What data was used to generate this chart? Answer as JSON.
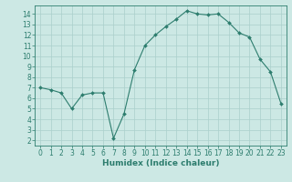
{
  "x": [
    0,
    1,
    2,
    3,
    4,
    5,
    6,
    7,
    8,
    9,
    10,
    11,
    12,
    13,
    14,
    15,
    16,
    17,
    18,
    19,
    20,
    21,
    22,
    23
  ],
  "y": [
    7.0,
    6.8,
    6.5,
    5.0,
    6.3,
    6.5,
    6.5,
    2.2,
    4.5,
    8.7,
    11.0,
    12.0,
    12.8,
    13.5,
    14.3,
    14.0,
    13.9,
    14.0,
    13.2,
    12.2,
    11.8,
    9.7,
    8.5,
    5.5
  ],
  "line_color": "#2d7d6e",
  "marker": "D",
  "marker_size": 2.0,
  "bg_color": "#cce8e4",
  "grid_color": "#aacfcb",
  "xlabel": "Humidex (Indice chaleur)",
  "xlim": [
    -0.5,
    23.5
  ],
  "ylim": [
    1.5,
    14.8
  ],
  "yticks": [
    2,
    3,
    4,
    5,
    6,
    7,
    8,
    9,
    10,
    11,
    12,
    13,
    14
  ],
  "xticks": [
    0,
    1,
    2,
    3,
    4,
    5,
    6,
    7,
    8,
    9,
    10,
    11,
    12,
    13,
    14,
    15,
    16,
    17,
    18,
    19,
    20,
    21,
    22,
    23
  ],
  "tick_fontsize": 5.5,
  "xlabel_fontsize": 6.5
}
